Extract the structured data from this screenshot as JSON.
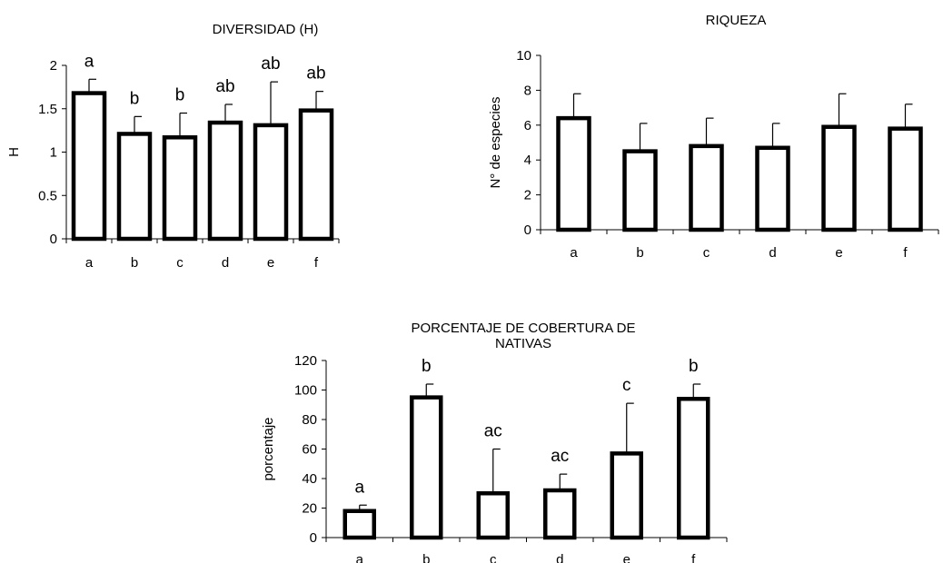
{
  "chart_data": [
    {
      "type": "bar",
      "title": "DIVERSIDAD (H)",
      "title_lines": [
        "DIVERSIDAD (H)"
      ],
      "xlabel": "",
      "ylabel": "H",
      "ylim": [
        0,
        2
      ],
      "yticks": [
        0,
        0.5,
        1,
        1.5,
        2
      ],
      "ytick_labels": [
        "0",
        "0.5",
        "1",
        "1.5",
        "2"
      ],
      "categories": [
        "a",
        "b",
        "c",
        "d",
        "e",
        "f"
      ],
      "values": [
        1.68,
        1.21,
        1.17,
        1.34,
        1.31,
        1.48
      ],
      "error_upper": [
        0.16,
        0.2,
        0.28,
        0.21,
        0.5,
        0.22
      ],
      "significance_labels": [
        "a",
        "b",
        "b",
        "ab",
        "ab",
        "ab"
      ],
      "grid": false
    },
    {
      "type": "bar",
      "title": "RIQUEZA",
      "title_lines": [
        "RIQUEZA"
      ],
      "xlabel": "",
      "ylabel": "N° de especies",
      "ylim": [
        0,
        10
      ],
      "yticks": [
        0,
        2,
        4,
        6,
        8,
        10
      ],
      "ytick_labels": [
        "0",
        "2",
        "4",
        "6",
        "8",
        "10"
      ],
      "categories": [
        "a",
        "b",
        "c",
        "d",
        "e",
        "f"
      ],
      "values": [
        6.4,
        4.5,
        4.8,
        4.7,
        5.9,
        5.8
      ],
      "error_upper": [
        1.4,
        1.6,
        1.6,
        1.4,
        1.9,
        1.4
      ],
      "significance_labels": [
        "",
        "",
        "",
        "",
        "",
        ""
      ],
      "grid": false
    },
    {
      "type": "bar",
      "title": "PORCENTAJE DE COBERTURA DE NATIVAS",
      "title_lines": [
        "PORCENTAJE DE COBERTURA DE",
        "NATIVAS"
      ],
      "xlabel": "",
      "ylabel": "porcentaje",
      "ylim": [
        0,
        120
      ],
      "yticks": [
        0,
        20,
        40,
        60,
        80,
        100,
        120
      ],
      "ytick_labels": [
        "0",
        "20",
        "40",
        "60",
        "80",
        "100",
        "120"
      ],
      "categories": [
        "a",
        "b",
        "c",
        "d",
        "e",
        "f"
      ],
      "values": [
        18,
        95,
        30,
        32,
        57,
        94
      ],
      "error_upper": [
        4,
        9,
        30,
        11,
        34,
        10
      ],
      "significance_labels": [
        "a",
        "b",
        "ac",
        "ac",
        "c",
        "b"
      ],
      "grid": false
    }
  ]
}
